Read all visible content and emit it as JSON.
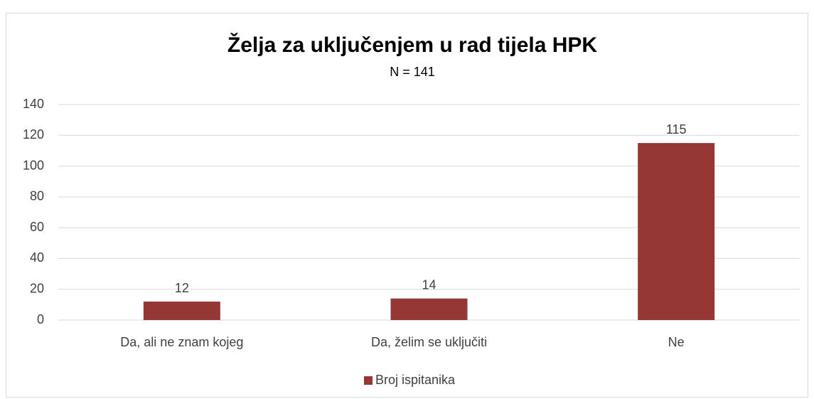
{
  "chart_data": {
    "type": "bar",
    "title": "Želja za uključenjem u rad tijela HPK",
    "subtitle": "N = 141",
    "categories": [
      "Da, ali ne znam kojeg",
      "Da, želim se uključiti",
      "Ne"
    ],
    "series": [
      {
        "name": "Broj ispitanika",
        "color": "#953735",
        "values": [
          12,
          14,
          115
        ]
      }
    ],
    "ylim": [
      0,
      140
    ],
    "yticks": [
      0,
      20,
      40,
      60,
      80,
      100,
      120,
      140
    ],
    "grid": true,
    "legend": "bottom"
  }
}
